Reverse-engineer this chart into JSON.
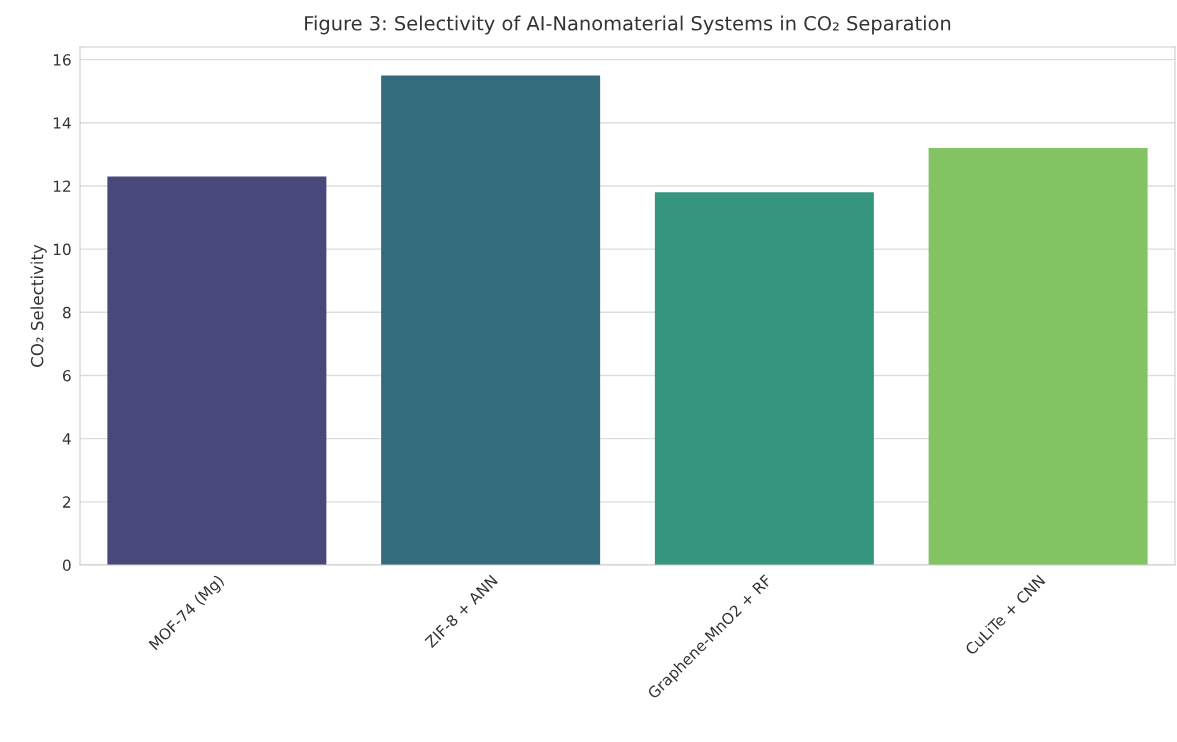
{
  "chart_data": {
    "type": "bar",
    "title": "Figure 3: Selectivity of AI-Nanomaterial Systems in CO₂ Separation",
    "ylabel": "CO₂ Selectivity",
    "categories": [
      "MOF-74 (Mg)",
      "ZIF-8 + ANN",
      "Graphene-MnO2 + RF",
      "CuLiTe + CNN"
    ],
    "values": [
      12.3,
      15.5,
      11.8,
      13.2
    ],
    "colors": [
      "#48487a",
      "#336d7d",
      "#35967d",
      "#82c362"
    ],
    "ylim": [
      0,
      16.4
    ],
    "yticks": [
      0,
      2,
      4,
      6,
      8,
      10,
      12,
      14,
      16
    ],
    "grid": "y"
  }
}
